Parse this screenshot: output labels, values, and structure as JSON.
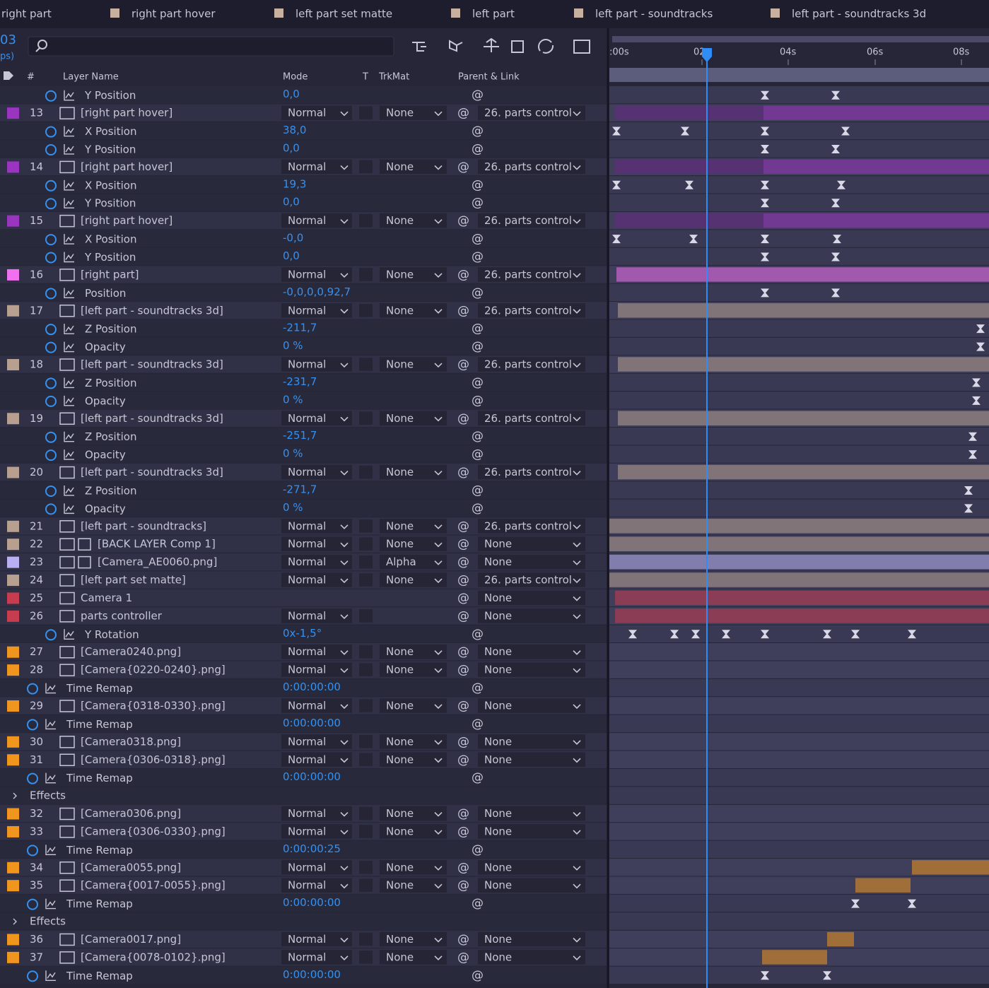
{
  "comp_time": "03",
  "fps": "ps)",
  "tabs": [
    "right part",
    "right part hover",
    "left part set matte",
    "left part",
    "left part - soundtracks",
    "left part - soundtracks 3d"
  ],
  "columns": {
    "num": "#",
    "name": "Layer Name",
    "mode": "Mode",
    "t": "T",
    "trkmat": "TrkMat",
    "parent": "Parent & Link"
  },
  "ruler": [
    ":00s",
    "02",
    "04s",
    "06s",
    "08s"
  ],
  "rows": [
    {
      "prop": "Y Position",
      "value": "0,0"
    },
    {
      "num": "13",
      "color": "#9a35c0",
      "name": "[right part hover]",
      "mode": "Normal",
      "trkmat": "None",
      "parent": "26. parts control"
    },
    {
      "prop": "X Position",
      "value": "38,0"
    },
    {
      "prop": "Y Position",
      "value": "0,0"
    },
    {
      "num": "14",
      "color": "#9a35c0",
      "name": "[right part hover]",
      "mode": "Normal",
      "trkmat": "None",
      "parent": "26. parts control"
    },
    {
      "prop": "X Position",
      "value": "19,3"
    },
    {
      "prop": "Y Position",
      "value": "0,0"
    },
    {
      "num": "15",
      "color": "#9a35c0",
      "name": "[right part hover]",
      "mode": "Normal",
      "trkmat": "None",
      "parent": "26. parts control"
    },
    {
      "prop": "X Position",
      "value": "-0,0"
    },
    {
      "prop": "Y Position",
      "value": "0,0"
    },
    {
      "num": "16",
      "color": "#f070f0",
      "name": "[right part]",
      "mode": "Normal",
      "trkmat": "None",
      "parent": "26. parts control"
    },
    {
      "prop": "Position",
      "value": "-0,0,0,0,92,7"
    },
    {
      "num": "17",
      "color": "#b8a090",
      "name": "[left part - soundtracks 3d]",
      "mode": "Normal",
      "trkmat": "None",
      "parent": "26. parts control"
    },
    {
      "prop": "Z Position",
      "value": "-211,7"
    },
    {
      "prop": "Opacity",
      "value": "0 %"
    },
    {
      "num": "18",
      "color": "#b8a090",
      "name": "[left part - soundtracks 3d]",
      "mode": "Normal",
      "trkmat": "None",
      "parent": "26. parts control"
    },
    {
      "prop": "Z Position",
      "value": "-231,7"
    },
    {
      "prop": "Opacity",
      "value": "0 %"
    },
    {
      "num": "19",
      "color": "#b8a090",
      "name": "[left part - soundtracks 3d]",
      "mode": "Normal",
      "trkmat": "None",
      "parent": "26. parts control"
    },
    {
      "prop": "Z Position",
      "value": "-251,7"
    },
    {
      "prop": "Opacity",
      "value": "0 %"
    },
    {
      "num": "20",
      "color": "#b8a090",
      "name": "[left part - soundtracks 3d]",
      "mode": "Normal",
      "trkmat": "None",
      "parent": "26. parts control"
    },
    {
      "prop": "Z Position",
      "value": "-271,7"
    },
    {
      "prop": "Opacity",
      "value": "0 %"
    },
    {
      "num": "21",
      "color": "#b8a090",
      "name": "[left part - soundtracks]",
      "mode": "Normal",
      "trkmat": "None",
      "parent": "26. parts control"
    },
    {
      "num": "22",
      "color": "#b8a090",
      "name": "[BACK LAYER Comp 1]",
      "mode": "Normal",
      "trkmat": "None",
      "parent": "None"
    },
    {
      "num": "23",
      "color": "#b8b0f0",
      "name": "[Camera_AE0060.png]",
      "mode": "Normal",
      "trkmat": "Alpha",
      "parent": "None"
    },
    {
      "num": "24",
      "color": "#b8a090",
      "name": "[left part set matte]",
      "mode": "Normal",
      "trkmat": "None",
      "parent": "26. parts control"
    },
    {
      "num": "25",
      "color": "#c83c50",
      "name": "Camera 1",
      "parent": "None"
    },
    {
      "num": "26",
      "color": "#c83c50",
      "name": "parts controller",
      "mode": "Normal",
      "parent": "None"
    },
    {
      "prop": "Y Rotation",
      "value": "0x-1,5°"
    },
    {
      "num": "27",
      "color": "#f0961e",
      "name": "[Camera0240.png]",
      "mode": "Normal",
      "trkmat": "None",
      "parent": "None"
    },
    {
      "num": "28",
      "color": "#f0961e",
      "name": "[Camera{0220-0240}.png]",
      "mode": "Normal",
      "trkmat": "None",
      "parent": "None"
    },
    {
      "prop": "Time Remap",
      "value": "0:00:00:00"
    },
    {
      "num": "29",
      "color": "#f0961e",
      "name": "[Camera{0318-0330}.png]",
      "mode": "Normal",
      "trkmat": "None",
      "parent": "None"
    },
    {
      "prop": "Time Remap",
      "value": "0:00:00:00"
    },
    {
      "num": "30",
      "color": "#f0961e",
      "name": "[Camera0318.png]",
      "mode": "Normal",
      "trkmat": "None",
      "parent": "None"
    },
    {
      "num": "31",
      "color": "#f0961e",
      "name": "[Camera{0306-0318}.png]",
      "mode": "Normal",
      "trkmat": "None",
      "parent": "None"
    },
    {
      "prop": "Time Remap",
      "value": "0:00:00:00"
    },
    {
      "group": "Effects"
    },
    {
      "num": "32",
      "color": "#f0961e",
      "name": "[Camera0306.png]",
      "mode": "Normal",
      "trkmat": "None",
      "parent": "None"
    },
    {
      "num": "33",
      "color": "#f0961e",
      "name": "[Camera{0306-0330}.png]",
      "mode": "Normal",
      "trkmat": "None",
      "parent": "None"
    },
    {
      "prop": "Time Remap",
      "value": "0:00:00:25"
    },
    {
      "num": "34",
      "color": "#f0961e",
      "name": "[Camera0055.png]",
      "mode": "Normal",
      "trkmat": "None",
      "parent": "None"
    },
    {
      "num": "35",
      "color": "#f0961e",
      "name": "[Camera{0017-0055}.png]",
      "mode": "Normal",
      "trkmat": "None",
      "parent": "None"
    },
    {
      "prop": "Time Remap",
      "value": "0:00:00:00"
    },
    {
      "group": "Effects"
    },
    {
      "num": "36",
      "color": "#f0961e",
      "name": "[Camera0017.png]",
      "mode": "Normal",
      "trkmat": "None",
      "parent": "None"
    },
    {
      "num": "37",
      "color": "#f0961e",
      "name": "[Camera{0078-0102}.png]",
      "mode": "Normal",
      "trkmat": "None",
      "parent": "None"
    },
    {
      "prop": "Time Remap",
      "value": "0:00:00:00"
    }
  ]
}
